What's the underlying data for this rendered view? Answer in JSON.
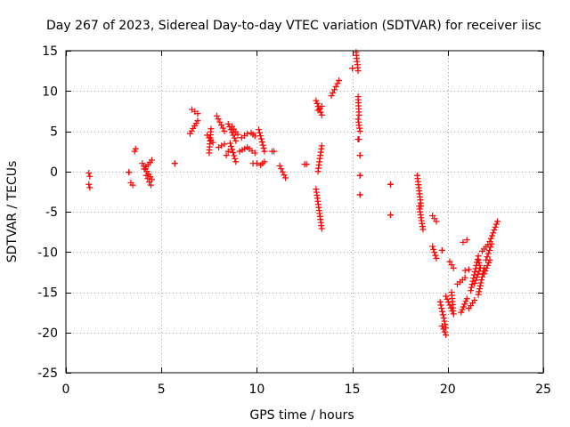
{
  "chart_data": {
    "type": "scatter",
    "title": "Day 267 of 2023, Sidereal Day-to-day VTEC variation (SDTVAR) for receiver iisc",
    "xlabel": "GPS time / hours",
    "ylabel": "SDTVAR / TECUs",
    "xlim": [
      0,
      25
    ],
    "ylim": [
      -25,
      15
    ],
    "xticks": [
      0,
      5,
      10,
      15,
      20,
      25
    ],
    "yticks": [
      -25,
      -20,
      -15,
      -10,
      -5,
      0,
      5,
      10,
      15
    ],
    "grid": true,
    "marker": "+",
    "color": "#ff0000",
    "series": [
      {
        "name": "SDTVAR",
        "segments": [
          [
            1.2,
            -0.2,
            1.25,
            -0.6
          ],
          [
            1.2,
            -1.6,
            1.25,
            -2.0
          ],
          [
            3.3,
            -0.1,
            3.3,
            -0.1
          ],
          [
            3.4,
            -1.4,
            3.5,
            -1.7
          ],
          [
            3.6,
            2.5,
            3.65,
            2.8
          ],
          [
            4.0,
            1.0,
            4.5,
            -1.0
          ],
          [
            4.1,
            0.3,
            4.5,
            1.4
          ],
          [
            4.2,
            -0.5,
            4.45,
            -1.7
          ],
          [
            5.7,
            1.0,
            5.7,
            1.0
          ],
          [
            6.5,
            4.7,
            6.9,
            6.3
          ],
          [
            6.6,
            7.7,
            6.9,
            7.2
          ],
          [
            7.4,
            4.5,
            7.7,
            3.6
          ],
          [
            7.5,
            2.3,
            7.6,
            5.3
          ],
          [
            7.9,
            6.9,
            8.3,
            5.0
          ],
          [
            8.0,
            3.0,
            8.3,
            3.4
          ],
          [
            8.4,
            2.0,
            8.5,
            2.5
          ],
          [
            8.5,
            5.9,
            8.9,
            3.8
          ],
          [
            8.6,
            3.5,
            8.9,
            1.2
          ],
          [
            8.7,
            5.6,
            9.0,
            4.6
          ],
          [
            9.1,
            2.5,
            9.5,
            3.0
          ],
          [
            9.2,
            4.2,
            9.5,
            4.7
          ],
          [
            9.6,
            2.8,
            9.9,
            2.3
          ],
          [
            9.7,
            4.8,
            9.9,
            4.4
          ],
          [
            9.8,
            1.0,
            10.0,
            1.0
          ],
          [
            10.1,
            5.2,
            10.4,
            2.5
          ],
          [
            10.2,
            0.8,
            10.4,
            1.2
          ],
          [
            10.8,
            2.5,
            10.9,
            2.5
          ],
          [
            11.2,
            0.7,
            11.5,
            -0.8
          ],
          [
            12.5,
            0.9,
            12.6,
            0.9
          ],
          [
            13.1,
            8.8,
            13.4,
            7.0
          ],
          [
            13.2,
            7.6,
            13.4,
            8.1
          ],
          [
            13.1,
            -2.2,
            13.4,
            -7.1
          ],
          [
            13.2,
            0.0,
            13.4,
            3.2
          ],
          [
            13.9,
            9.4,
            14.3,
            11.3
          ],
          [
            15.0,
            12.8,
            15.0,
            12.8
          ],
          [
            15.2,
            14.8,
            15.3,
            12.5
          ],
          [
            15.3,
            9.3,
            15.35,
            7.0
          ],
          [
            15.3,
            6.5,
            15.4,
            5.0
          ],
          [
            15.3,
            4.0,
            15.35,
            4.0
          ],
          [
            15.4,
            2.0,
            15.4,
            2.0
          ],
          [
            15.4,
            -0.5,
            15.4,
            -0.5
          ],
          [
            15.4,
            -2.9,
            15.4,
            -2.9
          ],
          [
            17.0,
            -1.6,
            17.0,
            -1.6
          ],
          [
            17.0,
            -5.4,
            17.0,
            -5.4
          ],
          [
            18.4,
            -0.5,
            18.6,
            -4.3
          ],
          [
            18.5,
            -4.3,
            18.7,
            -7.2
          ],
          [
            19.2,
            -5.5,
            19.4,
            -6.2
          ],
          [
            19.2,
            -9.3,
            19.4,
            -10.8
          ],
          [
            19.7,
            -9.8,
            19.7,
            -9.8
          ],
          [
            19.6,
            -16.2,
            19.9,
            -19.4
          ],
          [
            19.7,
            -19.2,
            19.9,
            -20.3
          ],
          [
            19.9,
            -15.5,
            20.3,
            -17.7
          ],
          [
            20.1,
            -11.2,
            20.3,
            -12.0
          ],
          [
            20.2,
            -15.0,
            20.3,
            -17.7
          ],
          [
            20.5,
            -14.0,
            20.9,
            -13.2
          ],
          [
            20.7,
            -17.5,
            21.0,
            -15.8
          ],
          [
            20.8,
            -8.8,
            21.0,
            -8.5
          ],
          [
            20.9,
            -12.3,
            21.1,
            -12.2
          ],
          [
            21.1,
            -17.0,
            21.4,
            -16.0
          ],
          [
            21.2,
            -14.8,
            21.6,
            -10.5
          ],
          [
            21.4,
            -13.9,
            21.7,
            -12.0
          ],
          [
            21.6,
            -11.0,
            21.7,
            -12.0
          ],
          [
            21.6,
            -15.3,
            21.9,
            -12.0
          ],
          [
            21.8,
            -9.9,
            22.1,
            -9.1
          ],
          [
            21.9,
            -12.7,
            22.2,
            -11.0
          ],
          [
            22.0,
            -11.0,
            22.3,
            -9.0
          ],
          [
            22.2,
            -8.7,
            22.6,
            -6.2
          ]
        ]
      }
    ]
  }
}
